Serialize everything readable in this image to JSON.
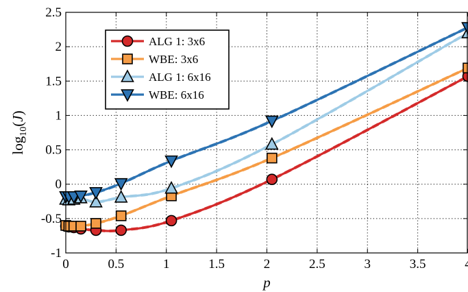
{
  "chart_data": {
    "type": "line",
    "xlabel": "p",
    "ylabel": "log10(J)",
    "ylabel_parts": {
      "main": "log",
      "sub": "10",
      "open": "(",
      "var": "J",
      "close": ")"
    },
    "xlim": [
      0,
      4
    ],
    "ylim": [
      -1,
      2.5
    ],
    "xticks": [
      0,
      0.5,
      1,
      1.5,
      2,
      2.5,
      3,
      3.5,
      4
    ],
    "yticks": [
      -1,
      -0.5,
      0,
      0.5,
      1,
      1.5,
      2,
      2.5
    ],
    "xtick_labels": [
      "0",
      "0.5",
      "1",
      "1.5",
      "2",
      "2.5",
      "3",
      "3.5",
      "4"
    ],
    "ytick_labels": [
      "-1",
      "-0.5",
      "0",
      "0.5",
      "1",
      "1.5",
      "2",
      "2.5"
    ],
    "grid": true,
    "legend_position": "top-left",
    "series": [
      {
        "name": "ALG 1: 3x6",
        "color": "#d42a2a",
        "marker": "circle",
        "x": [
          0.0,
          0.03,
          0.08,
          0.15,
          0.3,
          0.55,
          1.05,
          2.05,
          4.0
        ],
        "y": [
          -0.61,
          -0.62,
          -0.63,
          -0.65,
          -0.67,
          -0.67,
          -0.53,
          0.07,
          1.57
        ]
      },
      {
        "name": "WBE: 3x6",
        "color": "#f59c46",
        "marker": "square",
        "x": [
          0.0,
          0.03,
          0.08,
          0.15,
          0.3,
          0.55,
          1.05,
          2.05,
          4.0
        ],
        "y": [
          -0.6,
          -0.61,
          -0.61,
          -0.61,
          -0.57,
          -0.46,
          -0.17,
          0.38,
          1.69
        ]
      },
      {
        "name": "ALG 1: 6x16",
        "color": "#9ecbe6",
        "marker": "triangle-up",
        "x": [
          0.0,
          0.03,
          0.08,
          0.15,
          0.3,
          0.55,
          1.05,
          2.05,
          4.0
        ],
        "y": [
          -0.22,
          -0.23,
          -0.22,
          -0.2,
          -0.26,
          -0.19,
          -0.06,
          0.58,
          2.2
        ]
      },
      {
        "name": "WBE: 6x16",
        "color": "#2c73b3",
        "marker": "triangle-down",
        "x": [
          0.0,
          0.03,
          0.08,
          0.15,
          0.3,
          0.55,
          1.05,
          2.05,
          4.0
        ],
        "y": [
          -0.18,
          -0.18,
          -0.18,
          -0.17,
          -0.12,
          0.01,
          0.34,
          0.92,
          2.28
        ]
      }
    ]
  }
}
